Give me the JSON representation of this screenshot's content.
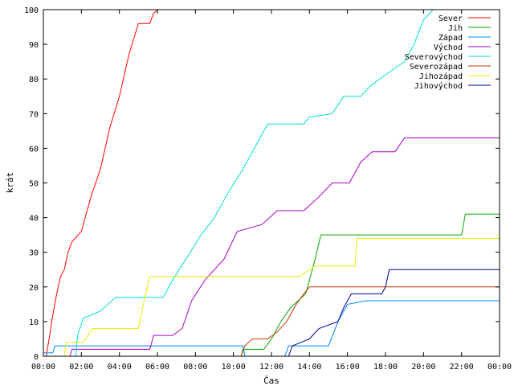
{
  "chart_data": {
    "type": "line",
    "title": "",
    "xlabel": "Čas",
    "ylabel": "krát",
    "xlim": [
      0,
      24
    ],
    "ylim": [
      0,
      100
    ],
    "grid": false,
    "legend_position": "top-right",
    "x_ticks": [
      "00:00",
      "02:00",
      "04:00",
      "06:00",
      "08:00",
      "10:00",
      "12:00",
      "14:00",
      "16:00",
      "18:00",
      "20:00",
      "22:00",
      "00:00"
    ],
    "y_ticks": [
      "0",
      "10",
      "20",
      "30",
      "40",
      "50",
      "60",
      "70",
      "80",
      "90",
      "100"
    ],
    "series": [
      {
        "name": "Sever",
        "color": "#ff0000",
        "points": [
          [
            0.15,
            0
          ],
          [
            0.3,
            5
          ],
          [
            0.5,
            12
          ],
          [
            0.7,
            18
          ],
          [
            0.9,
            23
          ],
          [
            1.1,
            25
          ],
          [
            1.3,
            30
          ],
          [
            1.5,
            33
          ],
          [
            2.0,
            36
          ],
          [
            2.5,
            46
          ],
          [
            3.0,
            54
          ],
          [
            3.5,
            66
          ],
          [
            4.0,
            75
          ],
          [
            4.5,
            87
          ],
          [
            5.0,
            96
          ],
          [
            5.6,
            96
          ],
          [
            5.8,
            99
          ],
          [
            6.05,
            100
          ]
        ]
      },
      {
        "name": "Jih",
        "color": "#00aa00",
        "points": [
          [
            10.4,
            0
          ],
          [
            10.5,
            2
          ],
          [
            11.6,
            2
          ],
          [
            12.0,
            5
          ],
          [
            12.5,
            10
          ],
          [
            13.0,
            14
          ],
          [
            13.8,
            18
          ],
          [
            14.3,
            28
          ],
          [
            14.6,
            35
          ],
          [
            22.0,
            35
          ],
          [
            22.2,
            41
          ],
          [
            24.0,
            41
          ]
        ]
      },
      {
        "name": "Západ",
        "color": "#0088ff",
        "points": [
          [
            0.0,
            1
          ],
          [
            0.5,
            1
          ],
          [
            0.6,
            3
          ],
          [
            10.5,
            3
          ],
          [
            10.6,
            0
          ],
          [
            12.7,
            0
          ],
          [
            12.9,
            3
          ],
          [
            15.0,
            3
          ],
          [
            15.5,
            10
          ],
          [
            16.0,
            15
          ],
          [
            17.0,
            16
          ],
          [
            24.0,
            16
          ]
        ]
      },
      {
        "name": "Východ",
        "color": "#aa00cc",
        "points": [
          [
            1.4,
            0
          ],
          [
            1.5,
            2
          ],
          [
            5.6,
            2
          ],
          [
            5.8,
            6
          ],
          [
            6.8,
            6
          ],
          [
            7.3,
            8
          ],
          [
            7.8,
            16
          ],
          [
            8.5,
            22
          ],
          [
            9.5,
            28
          ],
          [
            10.2,
            36
          ],
          [
            11.5,
            38
          ],
          [
            12.3,
            42
          ],
          [
            13.7,
            42
          ],
          [
            14.5,
            46
          ],
          [
            15.2,
            50
          ],
          [
            16.1,
            50
          ],
          [
            16.7,
            56
          ],
          [
            17.3,
            59
          ],
          [
            18.5,
            59
          ],
          [
            19.0,
            63
          ],
          [
            24.0,
            63
          ]
        ]
      },
      {
        "name": "Severovýchod",
        "color": "#00dddd",
        "points": [
          [
            1.7,
            0
          ],
          [
            1.8,
            6
          ],
          [
            2.1,
            11
          ],
          [
            3.0,
            13
          ],
          [
            3.8,
            17
          ],
          [
            6.3,
            17
          ],
          [
            6.8,
            22
          ],
          [
            7.5,
            28
          ],
          [
            8.3,
            35
          ],
          [
            9.0,
            40
          ],
          [
            9.7,
            47
          ],
          [
            10.5,
            54
          ],
          [
            11.3,
            62
          ],
          [
            11.8,
            67
          ],
          [
            13.7,
            67
          ],
          [
            14.0,
            69
          ],
          [
            15.2,
            70
          ],
          [
            15.8,
            75
          ],
          [
            16.7,
            75
          ],
          [
            17.2,
            78
          ],
          [
            18.2,
            82
          ],
          [
            19.0,
            85
          ],
          [
            19.5,
            90
          ],
          [
            20.0,
            97
          ],
          [
            20.5,
            100
          ]
        ]
      },
      {
        "name": "Severozápad",
        "color": "#cc3300",
        "points": [
          [
            10.4,
            0
          ],
          [
            10.6,
            3
          ],
          [
            11.0,
            5
          ],
          [
            11.8,
            5
          ],
          [
            12.3,
            7
          ],
          [
            12.8,
            10
          ],
          [
            13.3,
            15
          ],
          [
            13.7,
            18
          ],
          [
            14.0,
            20
          ],
          [
            24.0,
            20
          ]
        ]
      },
      {
        "name": "Jihozápad",
        "color": "#eeee00",
        "points": [
          [
            1.1,
            0
          ],
          [
            1.2,
            4
          ],
          [
            2.1,
            4
          ],
          [
            2.6,
            8
          ],
          [
            5.0,
            8
          ],
          [
            5.3,
            16
          ],
          [
            5.6,
            23
          ],
          [
            13.5,
            23
          ],
          [
            14.0,
            25
          ],
          [
            14.3,
            26
          ],
          [
            16.4,
            26
          ],
          [
            16.5,
            34
          ],
          [
            24.0,
            34
          ]
        ]
      },
      {
        "name": "Jihovýchod",
        "color": "#000099",
        "points": [
          [
            12.9,
            0
          ],
          [
            13.1,
            3
          ],
          [
            14.0,
            5
          ],
          [
            14.5,
            8
          ],
          [
            15.5,
            10
          ],
          [
            15.8,
            14
          ],
          [
            16.2,
            18
          ],
          [
            17.8,
            18
          ],
          [
            18.0,
            20
          ],
          [
            18.2,
            25
          ],
          [
            24.0,
            25
          ]
        ]
      }
    ]
  }
}
